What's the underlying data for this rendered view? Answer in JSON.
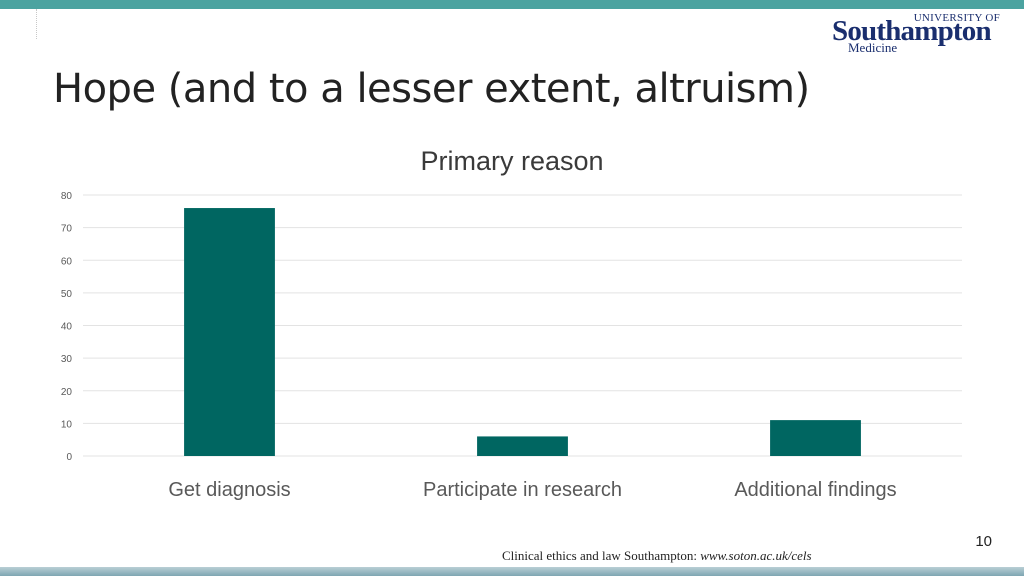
{
  "slide": {
    "title": "Hope (and to a lesser extent, altruism)",
    "page_number": "10",
    "footer_text": "Clinical ethics and law Southampton: ",
    "footer_url": "www.soton.ac.uk/cels"
  },
  "logo": {
    "line1": "UNIVERSITY OF",
    "line2": "Southampton",
    "line3": "Medicine"
  },
  "colors": {
    "accent_bar": "#4ba3a0",
    "bar_fill": "#006661",
    "gridline": "#e3e3e3"
  },
  "chart_data": {
    "type": "bar",
    "title": "Primary reason",
    "categories": [
      "Get diagnosis",
      "Participate in research",
      "Additional findings"
    ],
    "values": [
      76,
      6,
      11
    ],
    "ylim": [
      0,
      80
    ],
    "yticks": [
      0,
      10,
      20,
      30,
      40,
      50,
      60,
      70,
      80
    ],
    "grid": true,
    "xlabel": "",
    "ylabel": ""
  }
}
